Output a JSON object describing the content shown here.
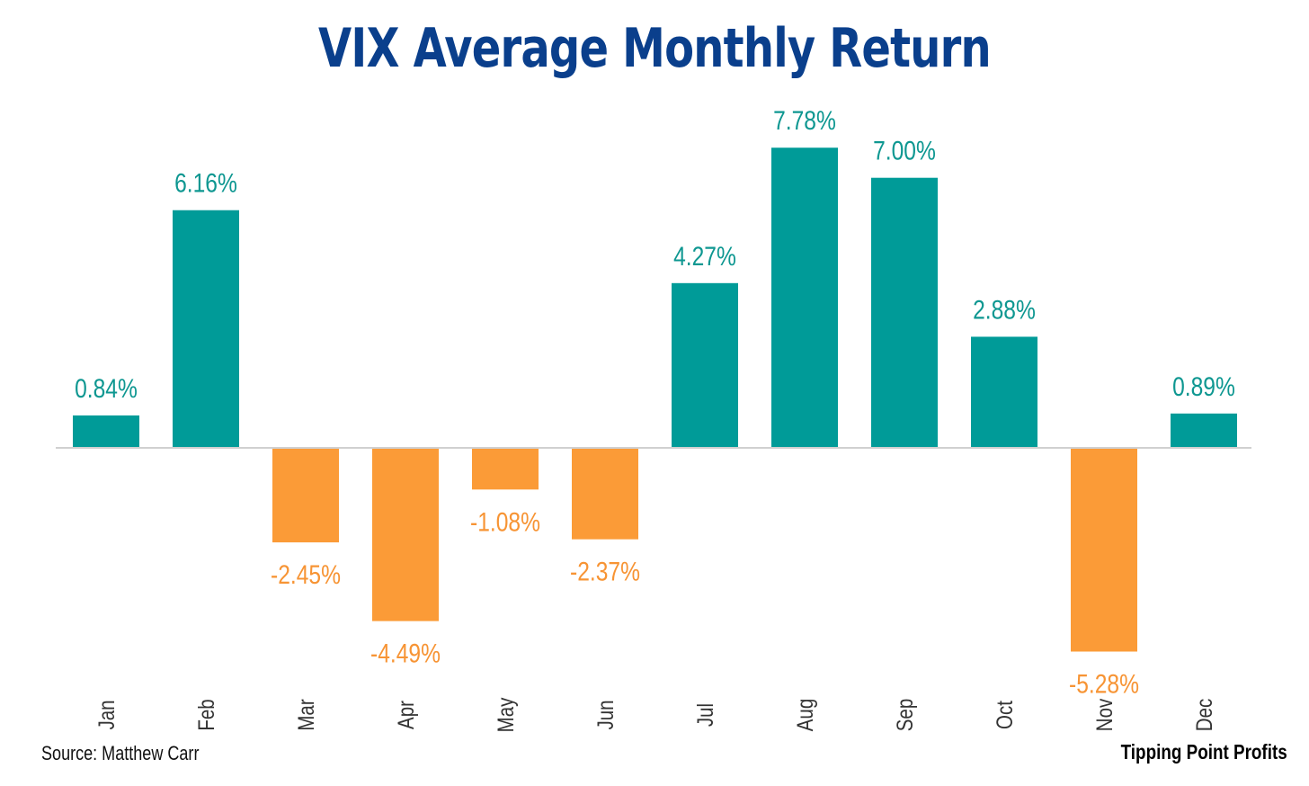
{
  "chart_data": {
    "type": "bar",
    "title": "VIX Average Monthly Return",
    "categories": [
      "Jan",
      "Feb",
      "Mar",
      "Apr",
      "May",
      "Jun",
      "Jul",
      "Aug",
      "Sep",
      "Oct",
      "Nov",
      "Dec"
    ],
    "values": [
      0.84,
      6.16,
      -2.45,
      -4.49,
      -1.08,
      -2.37,
      4.27,
      7.78,
      7.0,
      2.88,
      -5.28,
      0.89
    ],
    "data_labels": [
      "0.84%",
      "6.16%",
      "-2.45%",
      "-4.49%",
      "-1.08%",
      "-2.37%",
      "4.27%",
      "7.78%",
      "7.00%",
      "2.88%",
      "-5.28%",
      "0.89%"
    ],
    "ylim": [
      -6.6,
      8.5
    ],
    "grid": false,
    "legend": "none",
    "colors": {
      "positive": "#009b98",
      "negative": "#fb9b37",
      "positive_label": "#0e9791",
      "negative_label": "#f79434",
      "title": "#0a3f8c",
      "baseline": "#d0d0d0"
    }
  },
  "footer": {
    "source": "Source: Matthew Carr",
    "brand": "Tipping Point Profits"
  }
}
